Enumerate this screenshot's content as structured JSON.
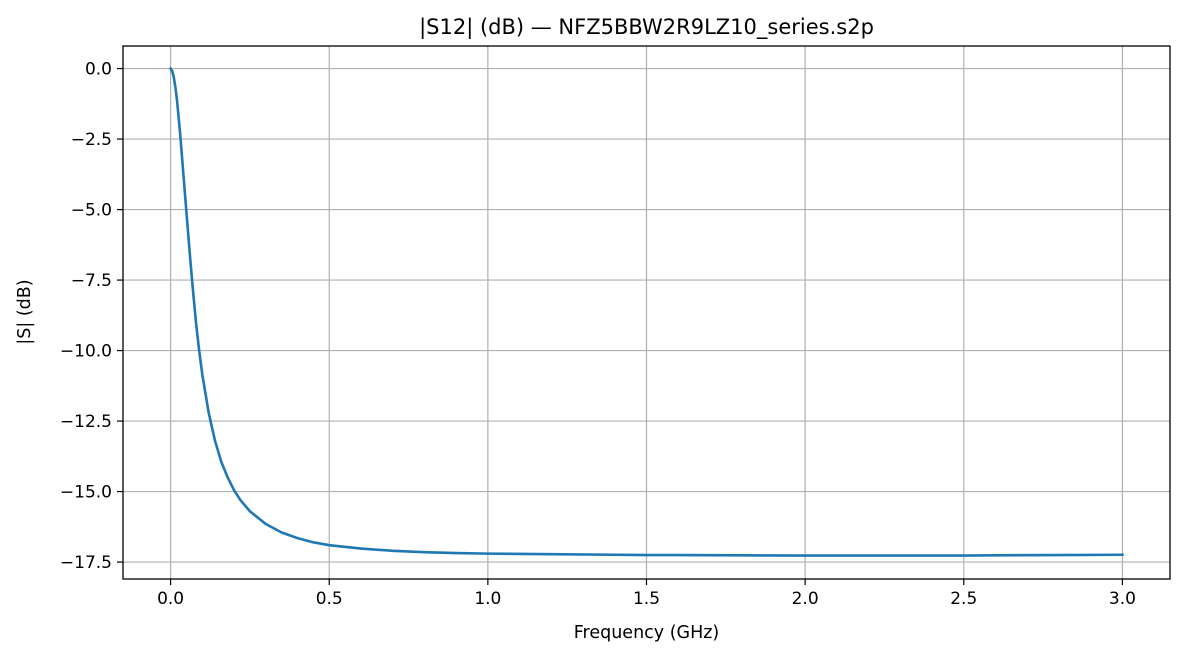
{
  "chart_data": {
    "type": "line",
    "title": "|S12| (dB) — NFZ5BBW2R9LZ10_series.s2p",
    "xlabel": "Frequency (GHz)",
    "ylabel": "|S| (dB)",
    "xlim": [
      -0.15,
      3.15
    ],
    "ylim": [
      -18.1,
      0.8
    ],
    "xticks": [
      0.0,
      0.5,
      1.0,
      1.5,
      2.0,
      2.5,
      3.0
    ],
    "xtick_labels": [
      "0.0",
      "0.5",
      "1.0",
      "1.5",
      "2.0",
      "2.5",
      "3.0"
    ],
    "yticks": [
      0.0,
      -2.5,
      -5.0,
      -7.5,
      -10.0,
      -12.5,
      -15.0,
      -17.5
    ],
    "ytick_labels": [
      "0.0",
      "−2.5",
      "−5.0",
      "−7.5",
      "−10.0",
      "−12.5",
      "−15.0",
      "−17.5"
    ],
    "grid": true,
    "color": "#1f77b4",
    "series": [
      {
        "x": [
          0.0,
          0.005,
          0.01,
          0.015,
          0.02,
          0.03,
          0.04,
          0.05,
          0.06,
          0.07,
          0.08,
          0.09,
          0.1,
          0.12,
          0.14,
          0.16,
          0.18,
          0.2,
          0.22,
          0.25,
          0.3,
          0.35,
          0.4,
          0.45,
          0.5,
          0.6,
          0.7,
          0.8,
          0.9,
          1.0,
          1.2,
          1.4,
          1.5,
          1.6,
          1.8,
          2.0,
          2.2,
          2.4,
          2.5,
          2.6,
          2.8,
          3.0
        ],
        "values": [
          0.0,
          -0.08,
          -0.3,
          -0.65,
          -1.1,
          -2.3,
          -3.7,
          -5.1,
          -6.5,
          -7.8,
          -9.0,
          -10.0,
          -10.85,
          -12.2,
          -13.2,
          -13.95,
          -14.5,
          -14.95,
          -15.3,
          -15.7,
          -16.15,
          -16.45,
          -16.65,
          -16.8,
          -16.9,
          -17.02,
          -17.1,
          -17.15,
          -17.18,
          -17.2,
          -17.22,
          -17.24,
          -17.25,
          -17.25,
          -17.26,
          -17.27,
          -17.27,
          -17.27,
          -17.27,
          -17.26,
          -17.25,
          -17.24
        ]
      }
    ]
  }
}
